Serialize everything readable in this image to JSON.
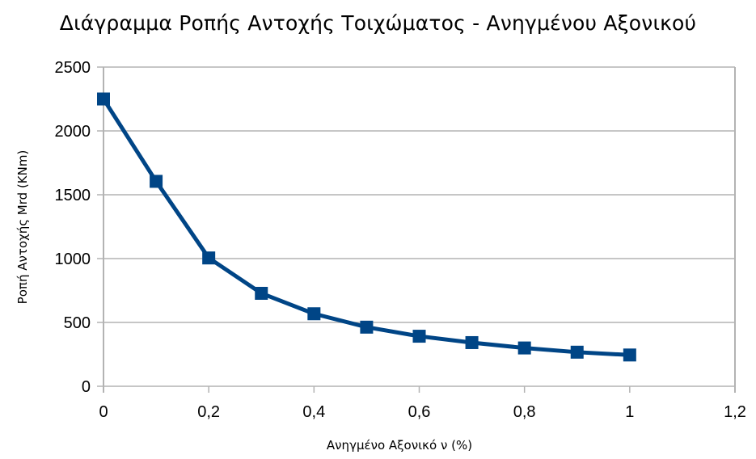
{
  "chart_data": {
    "type": "line",
    "title": "Διάγραμμα Ροπής Αντοχής Τοιχώματος - Ανηγμένου Αξονικού",
    "xlabel": "Ανηγμένο Αξονικό ν (%)",
    "ylabel": "Ροπή Αντοχής Mrd (KNm)",
    "xlim": [
      0,
      1.2
    ],
    "ylim": [
      0,
      2500
    ],
    "x_ticks": [
      0,
      0.2,
      0.4,
      0.6,
      0.8,
      1,
      1.2
    ],
    "x_tick_labels": [
      "0",
      "0,2",
      "0,4",
      "0,6",
      "0,8",
      "1",
      "1,2"
    ],
    "y_ticks": [
      0,
      500,
      1000,
      1500,
      2000,
      2500
    ],
    "y_tick_labels": [
      "0",
      "500",
      "1000",
      "1500",
      "2000",
      "2500"
    ],
    "grid": {
      "horizontal": true,
      "vertical": false
    },
    "legend": null,
    "x": [
      0,
      0.1,
      0.2,
      0.3,
      0.4,
      0.5,
      0.6,
      0.7,
      0.8,
      0.9,
      1.0
    ],
    "series": [
      {
        "name": "Mrd",
        "marker": "square",
        "color": "#004586",
        "values": [
          2250,
          1605,
          1005,
          728,
          568,
          463,
          392,
          342,
          300,
          267,
          245
        ]
      }
    ]
  },
  "colors": {
    "series": "#004586",
    "grid": "#b3b3b3",
    "axis": "#b3b3b3"
  }
}
